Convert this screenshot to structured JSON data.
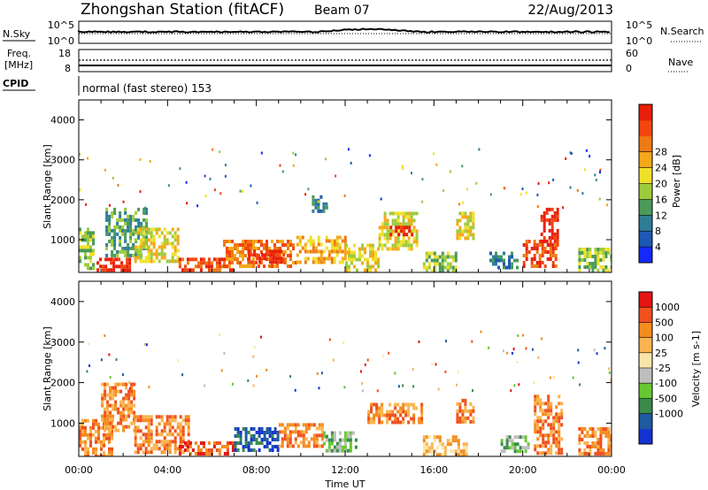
{
  "header": {
    "station": "Zhongshan Station (fitACF)",
    "beam": "Beam 07",
    "date": "22/Aug/2013"
  },
  "top_panels": {
    "nsky_label": "N.Sky",
    "nsky_ticks": [
      "10^5",
      "10^0"
    ],
    "nsearch_label": "N.Search",
    "nsearch_ticks": [
      "10^5",
      "10^0"
    ],
    "freq_label_1": "Freq.",
    "freq_label_2": "[MHz]",
    "freq_ticks": [
      "18",
      "8"
    ],
    "nave_label": "Nave",
    "nave_ticks": [
      "60",
      "0"
    ],
    "cpid_label": "CPID",
    "cpid_text": "normal (fast stereo) 153"
  },
  "chart_data": [
    {
      "type": "heatmap",
      "title": "",
      "xlabel": "",
      "ylabel": "Slant Range [km]",
      "xlim": [
        0,
        24
      ],
      "ylim": [
        180,
        4500
      ],
      "yticks": [
        "1000",
        "2000",
        "3000",
        "4000"
      ],
      "colorbar": {
        "label": "Power [dB]",
        "ticks": [
          "4",
          "8",
          "12",
          "16",
          "20",
          "24",
          "28"
        ],
        "colors": [
          "#1428ff",
          "#1e58b4",
          "#2e7d96",
          "#4a9a5a",
          "#9ccc3c",
          "#f0e02a",
          "#f4a81a",
          "#ee7a14",
          "#f2460e",
          "#e81e0a"
        ]
      },
      "regions": [
        {
          "x": [
            0.0,
            0.6
          ],
          "y": [
            250,
            1300
          ],
          "level": 4
        },
        {
          "x": [
            0.8,
            2.3
          ],
          "y": [
            220,
            550
          ],
          "level": 9
        },
        {
          "x": [
            1.2,
            3.0
          ],
          "y": [
            600,
            1800
          ],
          "level": 3
        },
        {
          "x": [
            2.5,
            4.5
          ],
          "y": [
            500,
            1300
          ],
          "level": 5
        },
        {
          "x": [
            4.5,
            7.0
          ],
          "y": [
            220,
            550
          ],
          "level": 8
        },
        {
          "x": [
            6.5,
            9.8
          ],
          "y": [
            300,
            1000
          ],
          "level": 7
        },
        {
          "x": [
            7.5,
            9.2
          ],
          "y": [
            450,
            750
          ],
          "level": 9
        },
        {
          "x": [
            9.8,
            12.0
          ],
          "y": [
            400,
            1100
          ],
          "level": 6
        },
        {
          "x": [
            10.5,
            11.2
          ],
          "y": [
            1700,
            2200
          ],
          "level": 2
        },
        {
          "x": [
            12.0,
            13.5
          ],
          "y": [
            250,
            900
          ],
          "level": 5
        },
        {
          "x": [
            13.5,
            15.2
          ],
          "y": [
            800,
            1700
          ],
          "level": 5
        },
        {
          "x": [
            14.0,
            15.0
          ],
          "y": [
            1100,
            1350
          ],
          "level": 9
        },
        {
          "x": [
            15.5,
            17.0
          ],
          "y": [
            200,
            700
          ],
          "level": 4
        },
        {
          "x": [
            17.0,
            17.8
          ],
          "y": [
            1000,
            1700
          ],
          "level": 5
        },
        {
          "x": [
            18.5,
            19.8
          ],
          "y": [
            300,
            700
          ],
          "level": 2
        },
        {
          "x": [
            20.0,
            21.5
          ],
          "y": [
            300,
            1000
          ],
          "level": 8
        },
        {
          "x": [
            20.8,
            21.6
          ],
          "y": [
            900,
            1800
          ],
          "level": 9
        },
        {
          "x": [
            22.5,
            24.0
          ],
          "y": [
            220,
            800
          ],
          "level": 4
        }
      ]
    },
    {
      "type": "heatmap",
      "title": "",
      "xlabel": "Time UT",
      "ylabel": "Slant Range [km]",
      "xlim": [
        0,
        24
      ],
      "ylim": [
        180,
        4500
      ],
      "xticks": [
        "00:00",
        "04:00",
        "08:00",
        "12:00",
        "16:00",
        "20:00",
        "00:00"
      ],
      "yticks": [
        "1000",
        "2000",
        "3000",
        "4000"
      ],
      "colorbar": {
        "label": "Velocity [m s-1]",
        "ticks": [
          "1000",
          "500",
          "100",
          "25",
          "-25",
          "-100",
          "-500",
          "-1000"
        ],
        "colors": [
          "#1432d2",
          "#1e5aa0",
          "#3a8a4c",
          "#66c832",
          "#bebebe",
          "#fae6aa",
          "#fab450",
          "#f58c1e",
          "#f0501e",
          "#e61414"
        ]
      },
      "regions": [
        {
          "x": [
            0.0,
            1.5
          ],
          "y": [
            220,
            1100
          ],
          "level": 7
        },
        {
          "x": [
            1.0,
            2.5
          ],
          "y": [
            800,
            2000
          ],
          "level": 7
        },
        {
          "x": [
            2.5,
            5.0
          ],
          "y": [
            300,
            1200
          ],
          "level": 7
        },
        {
          "x": [
            4.5,
            7.0
          ],
          "y": [
            220,
            550
          ],
          "level": 8
        },
        {
          "x": [
            7.0,
            9.0
          ],
          "y": [
            350,
            900
          ],
          "level": 1
        },
        {
          "x": [
            9.0,
            11.0
          ],
          "y": [
            400,
            1000
          ],
          "level": 7
        },
        {
          "x": [
            11.0,
            12.5
          ],
          "y": [
            350,
            800
          ],
          "level": 3
        },
        {
          "x": [
            13.0,
            15.5
          ],
          "y": [
            1000,
            1500
          ],
          "level": 7
        },
        {
          "x": [
            15.5,
            17.5
          ],
          "y": [
            200,
            700
          ],
          "level": 6
        },
        {
          "x": [
            17.0,
            17.8
          ],
          "y": [
            1000,
            1600
          ],
          "level": 7
        },
        {
          "x": [
            19.0,
            20.3
          ],
          "y": [
            300,
            700
          ],
          "level": 3
        },
        {
          "x": [
            20.5,
            21.7
          ],
          "y": [
            300,
            1700
          ],
          "level": 7
        },
        {
          "x": [
            22.5,
            24.0
          ],
          "y": [
            220,
            900
          ],
          "level": 7
        }
      ]
    }
  ]
}
